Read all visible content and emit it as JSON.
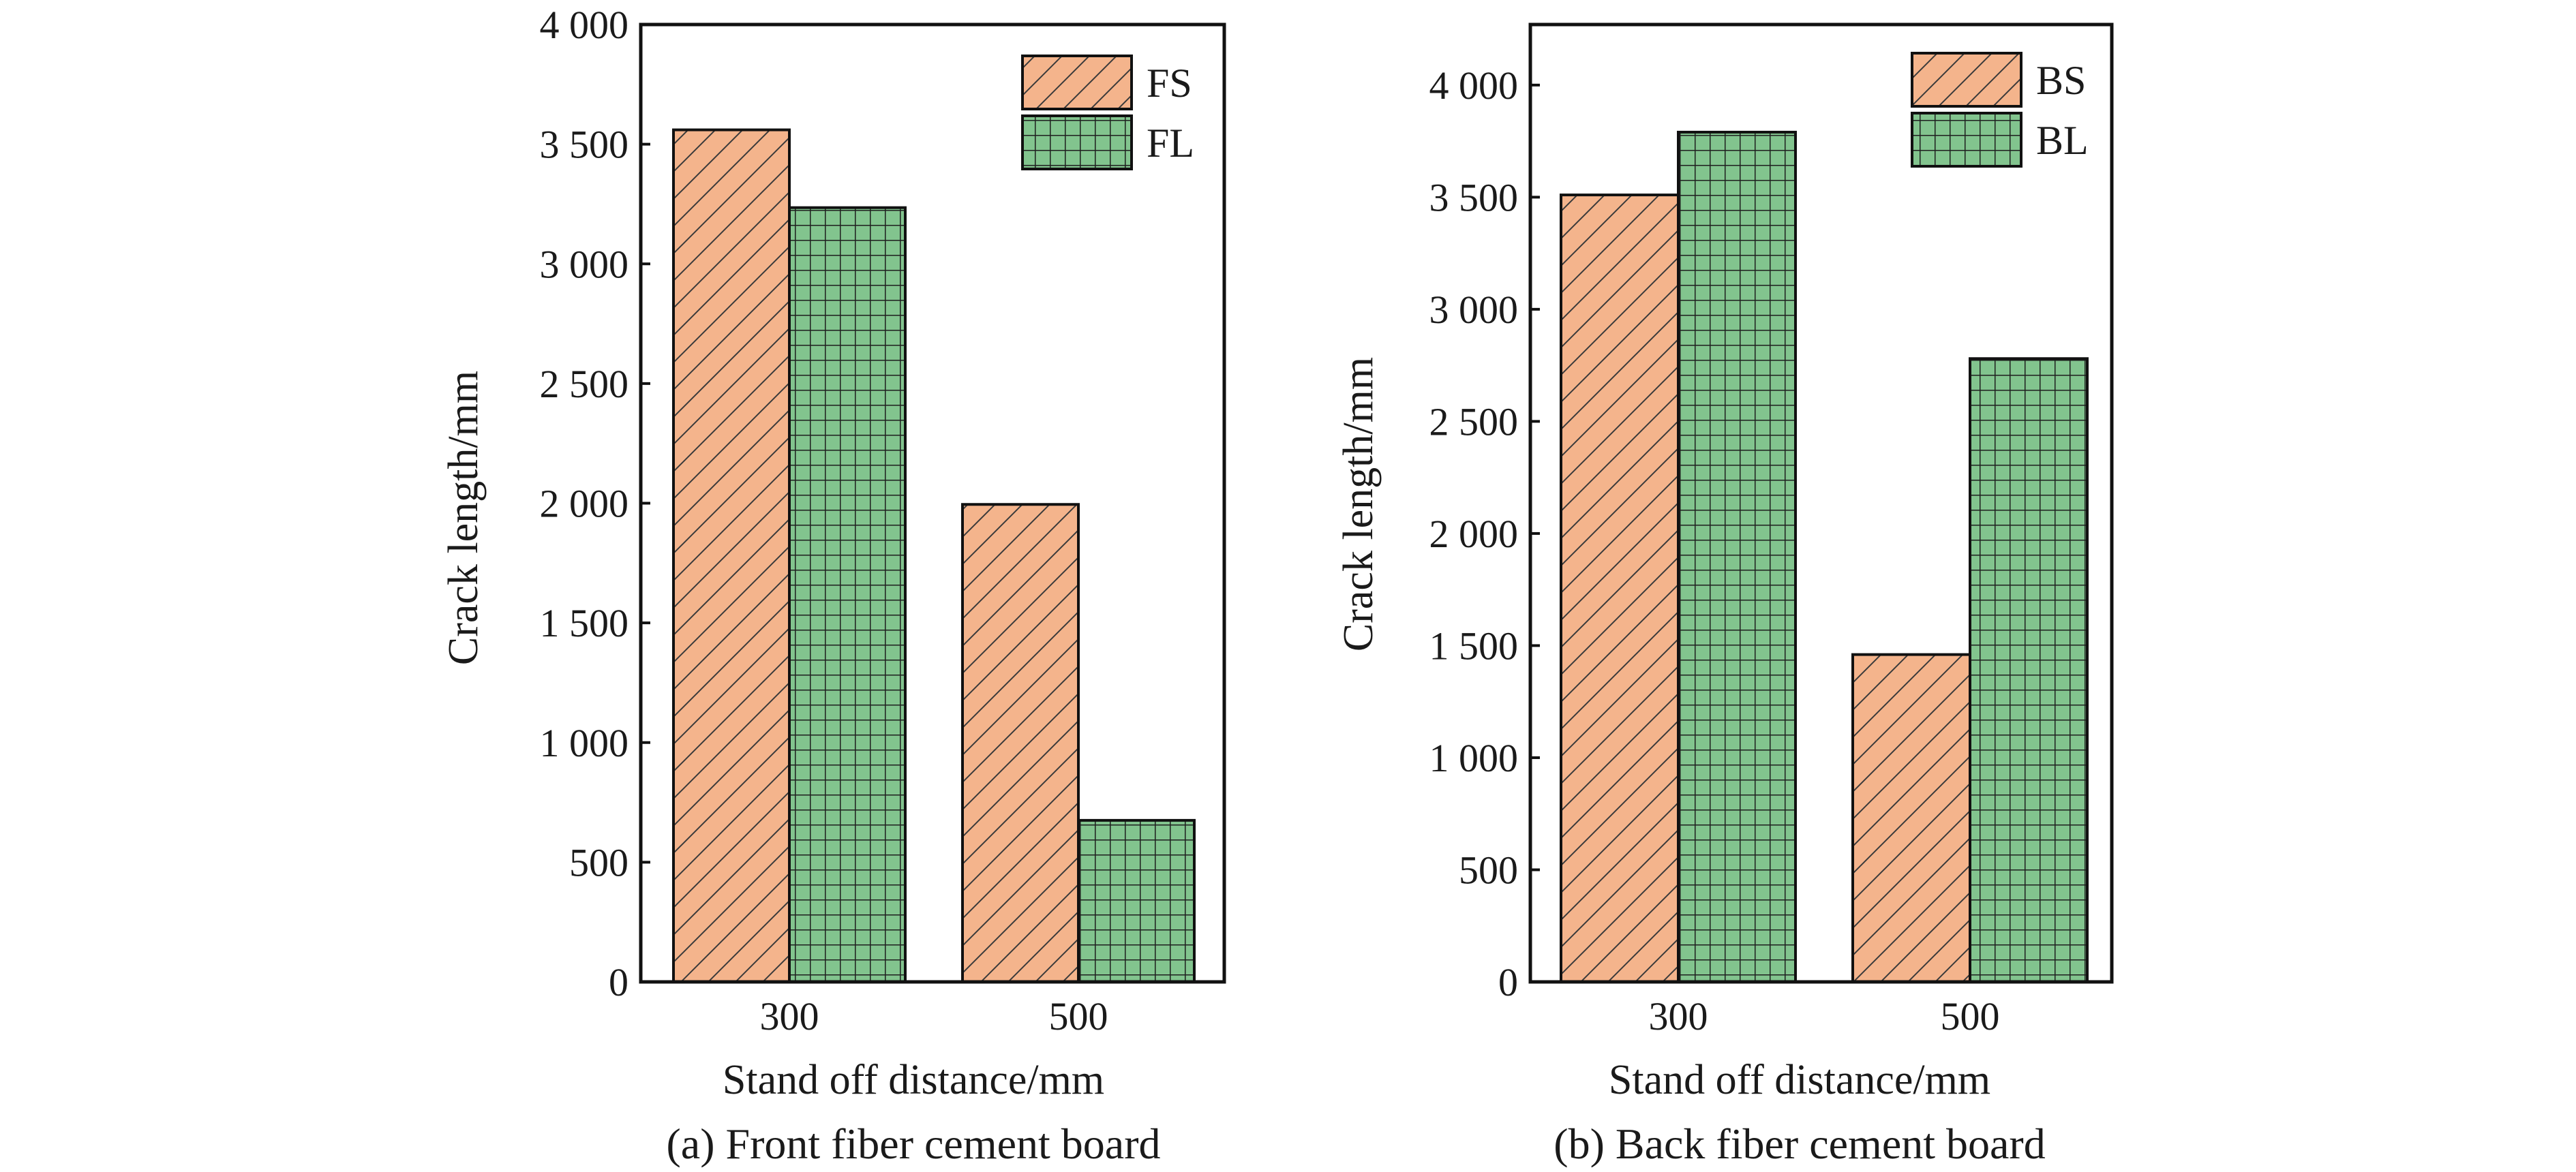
{
  "chart_data": [
    {
      "type": "bar",
      "caption": "(a) Front fiber cement board",
      "xlabel": "Stand off distance/mm",
      "ylabel": "Crack length/mm",
      "categories": [
        "300",
        "500"
      ],
      "ylim": [
        0,
        4000
      ],
      "yticks": [
        0,
        500,
        1000,
        1500,
        2000,
        2500,
        3000,
        3500,
        4000
      ],
      "ytick_labels": [
        "0",
        "500",
        "1 000",
        "1 500",
        "2 000",
        "2 500",
        "3 000",
        "3 500",
        "4 000"
      ],
      "legend_position": "top-right",
      "grid": false,
      "series": [
        {
          "name": "FS",
          "values": [
            3560,
            1995
          ],
          "color": "#f4b48c",
          "pattern": "diagonal-hatch"
        },
        {
          "name": "FL",
          "values": [
            3235,
            675
          ],
          "color": "#82c48e",
          "pattern": "grid-hatch"
        }
      ]
    },
    {
      "type": "bar",
      "caption": "(b) Back fiber cement board",
      "xlabel": "Stand off distance/mm",
      "ylabel": "Crack length/mm",
      "categories": [
        "300",
        "500"
      ],
      "ylim": [
        0,
        4270
      ],
      "yticks": [
        0,
        500,
        1000,
        1500,
        2000,
        2500,
        3000,
        3500,
        4000
      ],
      "ytick_labels": [
        "0",
        "500",
        "1 000",
        "1 500",
        "2 000",
        "2 500",
        "3 000",
        "3 500",
        "4 000"
      ],
      "legend_position": "top-right",
      "grid": false,
      "series": [
        {
          "name": "BS",
          "values": [
            3510,
            1460
          ],
          "color": "#f4b48c",
          "pattern": "diagonal-hatch"
        },
        {
          "name": "BL",
          "values": [
            3790,
            2780
          ],
          "color": "#82c48e",
          "pattern": "grid-hatch"
        }
      ]
    }
  ]
}
